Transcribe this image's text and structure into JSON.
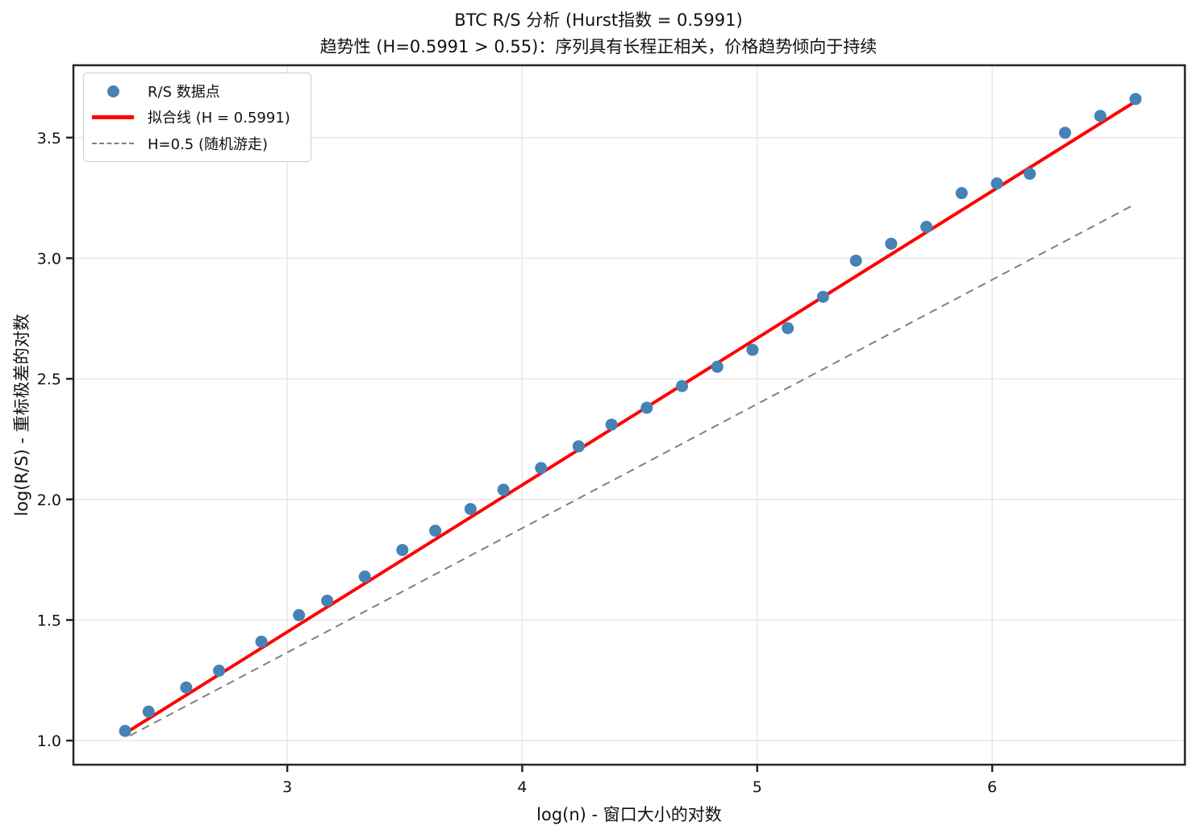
{
  "chart_data": {
    "type": "scatter",
    "title": "BTC R/S 分析 (Hurst指数 = 0.5991)",
    "subtitle": "趋势性 (H=0.5991 > 0.55)：序列具有长程正相关，价格趋势倾向于持续",
    "xlabel": "log(n) - 窗口大小的对数",
    "ylabel": "log(R/S) - 重标极差的对数",
    "xlim": [
      2.09,
      6.82
    ],
    "ylim": [
      0.9,
      3.8
    ],
    "xticks": [
      3,
      4,
      5,
      6
    ],
    "xtick_labels": [
      "3",
      "4",
      "5",
      "6"
    ],
    "yticks": [
      1.0,
      1.5,
      2.0,
      2.5,
      3.0,
      3.5
    ],
    "ytick_labels": [
      "1.0",
      "1.5",
      "2.0",
      "2.5",
      "3.0",
      "3.5"
    ],
    "grid": true,
    "hurst_exponent": 0.5991,
    "scatter": {
      "name": "R/S 数据点",
      "color": "#4682b4",
      "marker_size": 15,
      "points": [
        [
          2.31,
          1.04
        ],
        [
          2.41,
          1.12
        ],
        [
          2.57,
          1.22
        ],
        [
          2.71,
          1.29
        ],
        [
          2.89,
          1.41
        ],
        [
          3.05,
          1.52
        ],
        [
          3.17,
          1.58
        ],
        [
          3.33,
          1.68
        ],
        [
          3.49,
          1.79
        ],
        [
          3.63,
          1.87
        ],
        [
          3.78,
          1.96
        ],
        [
          3.92,
          2.04
        ],
        [
          4.08,
          2.13
        ],
        [
          4.24,
          2.22
        ],
        [
          4.38,
          2.31
        ],
        [
          4.53,
          2.38
        ],
        [
          4.68,
          2.47
        ],
        [
          4.83,
          2.55
        ],
        [
          4.98,
          2.62
        ],
        [
          5.13,
          2.71
        ],
        [
          5.28,
          2.84
        ],
        [
          5.42,
          2.99
        ],
        [
          5.57,
          3.06
        ],
        [
          5.72,
          3.13
        ],
        [
          5.87,
          3.27
        ],
        [
          6.02,
          3.31
        ],
        [
          6.16,
          3.35
        ],
        [
          6.31,
          3.52
        ],
        [
          6.46,
          3.59
        ],
        [
          6.61,
          3.66
        ]
      ]
    },
    "fit_line": {
      "name": "拟合线 (H = 0.5991)",
      "color": "#ff0000",
      "width": 4,
      "x": [
        2.31,
        6.61
      ],
      "y": [
        1.03,
        3.65
      ]
    },
    "random_walk_line": {
      "name": "H=0.5 (随机游走)",
      "color": "#808080",
      "style": "dashed",
      "width": 2,
      "x": [
        2.33,
        6.6
      ],
      "y": [
        1.02,
        3.22
      ]
    },
    "legend_position": "upper-left",
    "legend": [
      {
        "marker": "dot",
        "color": "#4682b4",
        "label": "R/S 数据点"
      },
      {
        "marker": "line",
        "color": "#ff0000",
        "label": "拟合线 (H = 0.5991)"
      },
      {
        "marker": "dash",
        "color": "#808080",
        "label": "H=0.5 (随机游走)"
      }
    ],
    "colors": {
      "grid": "#e8e8e8",
      "spine": "#262626",
      "text": "#111111",
      "background": "#ffffff"
    }
  }
}
